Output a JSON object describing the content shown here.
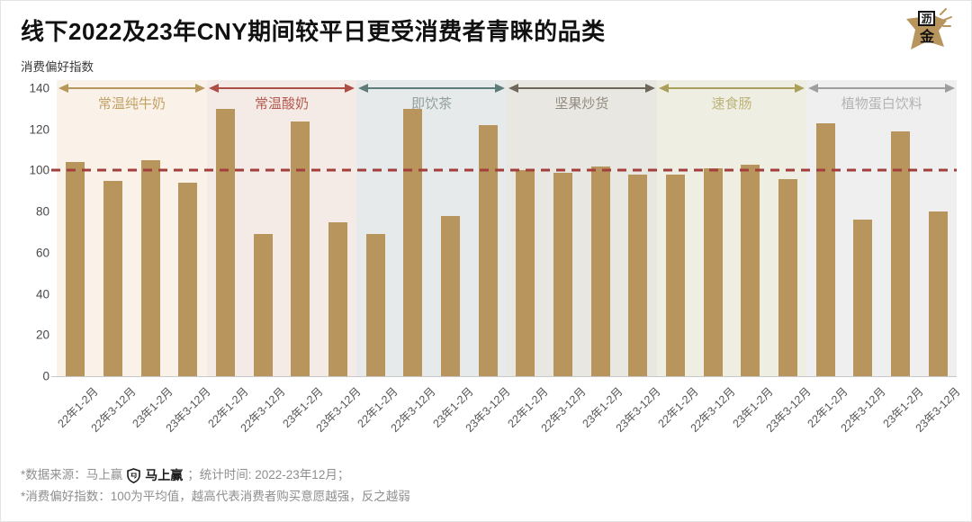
{
  "page": {
    "y_axis_caption": "消费偏好指数"
  },
  "logo": {
    "name": "沥金",
    "top_char": "沥",
    "bottom_char": "金",
    "color": "#b8955c"
  },
  "footer": {
    "line1_prefix": "*数据来源：马上赢",
    "line1_brand": "马上赢",
    "line1_suffix": "；统计时间: 2022-23年12月；",
    "line2": "*消费偏好指数：100为平均值，越高代表消费者购买意愿越强，反之越弱"
  },
  "chart_data": {
    "type": "bar",
    "title": "线下2022及23年CNY期间较平日更受消费者青睐的品类",
    "ylabel": "消费偏好指数",
    "ylim": [
      0,
      140
    ],
    "yticks": [
      0,
      20,
      40,
      60,
      80,
      100,
      120,
      140
    ],
    "baseline": 100,
    "baseline_style": "dashed",
    "baseline_color": "#a23f3d",
    "grid": false,
    "legend": "none",
    "bar_color": "#b8955c",
    "axis_color": "#c9c9c9",
    "categories": [
      "22年1-2月",
      "22年3-12月",
      "23年1-2月",
      "23年3-12月"
    ],
    "groups": [
      {
        "name": "常温纯牛奶",
        "values": [
          104,
          95,
          105,
          94
        ],
        "arrow_color": "#b8975a",
        "label_color": "#c2a166",
        "band_bg": "#faf2e9"
      },
      {
        "name": "常温酸奶",
        "values": [
          130,
          69,
          124,
          75
        ],
        "arrow_color": "#ac4f47",
        "label_color": "#b45a50",
        "band_bg": "#f5ebe6"
      },
      {
        "name": "即饮茶",
        "values": [
          69,
          130,
          78,
          122
        ],
        "arrow_color": "#5e7c79",
        "label_color": "#92a09d",
        "band_bg": "#e6eaea"
      },
      {
        "name": "坚果炒货",
        "values": [
          100,
          99,
          102,
          98
        ],
        "arrow_color": "#6e685c",
        "label_color": "#918b80",
        "band_bg": "#e9e7e2"
      },
      {
        "name": "速食肠",
        "values": [
          98,
          101,
          103,
          96
        ],
        "arrow_color": "#aaa05c",
        "label_color": "#bcb47a",
        "band_bg": "#efeee3"
      },
      {
        "name": "植物蛋白饮料",
        "values": [
          123,
          76,
          119,
          80
        ],
        "arrow_color": "#9e9e9e",
        "label_color": "#b3b3b3",
        "band_bg": "#efefef"
      }
    ]
  }
}
